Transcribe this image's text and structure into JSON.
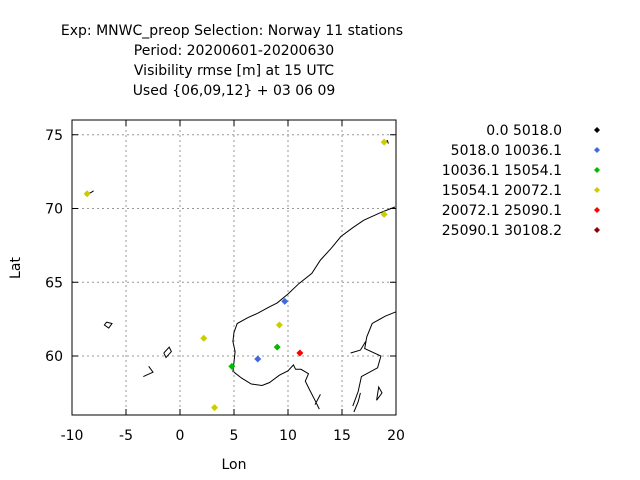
{
  "chart_data": {
    "type": "scatter",
    "title_lines": [
      "Exp: MNWC_preop   Selection: Norway     11 stations",
      "Period: 20200601-20200630",
      "Visibility rmse [m] at  15 UTC",
      "Used {06,09,12} + 03 06 09"
    ],
    "xlabel": "Lon",
    "ylabel": "Lat",
    "xlim": [
      -10,
      20
    ],
    "ylim": [
      56,
      76
    ],
    "xticks": [
      "-10",
      "-5",
      "0",
      "5",
      "10",
      "15",
      "20"
    ],
    "yticks": [
      "60",
      "65",
      "70",
      "75"
    ],
    "grid": true,
    "legend_placement": "right",
    "series": [
      {
        "name": "0.0 5018.0",
        "color": "#000000",
        "points": []
      },
      {
        "name": "5018.0 10036.1",
        "color": "#4169e1",
        "points": [
          [
            7.2,
            59.8
          ],
          [
            9.7,
            63.7
          ]
        ]
      },
      {
        "name": "10036.1 15054.1",
        "color": "#00bb00",
        "points": [
          [
            4.8,
            59.3
          ],
          [
            9.0,
            60.6
          ]
        ]
      },
      {
        "name": "15054.1 20072.1",
        "color": "#cccc00",
        "points": [
          [
            -8.6,
            71.0
          ],
          [
            18.9,
            74.5
          ],
          [
            18.9,
            69.6
          ],
          [
            2.2,
            61.2
          ],
          [
            9.2,
            62.1
          ],
          [
            3.2,
            56.5
          ]
        ]
      },
      {
        "name": "20072.1 25090.1",
        "color": "#ff0000",
        "points": [
          [
            11.1,
            60.2
          ]
        ]
      },
      {
        "name": "25090.1 30108.2",
        "color": "#8b0000",
        "points": []
      }
    ]
  }
}
